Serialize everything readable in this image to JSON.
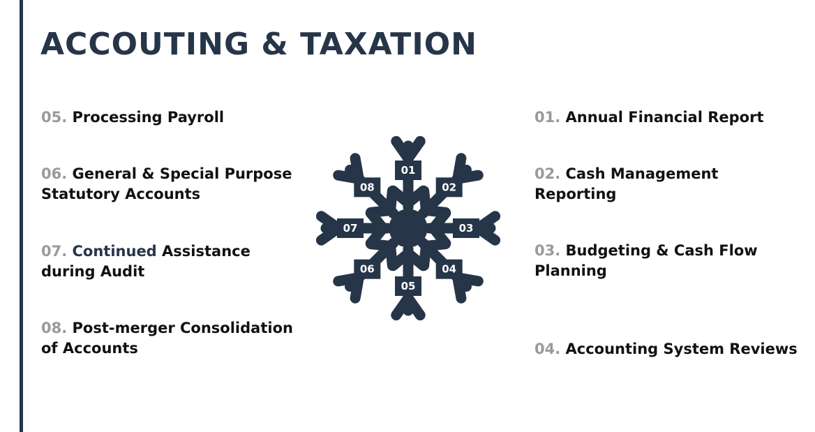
{
  "title": "ACCOUTING & TAXATION",
  "left_items": [
    {
      "num": "05.",
      "text": "Processing Payroll"
    },
    {
      "num": "06.",
      "text": "General & Special Purpose Statutory Accounts"
    },
    {
      "num": "07.",
      "highlight": "Continued",
      "text": "Assistance during Audit"
    },
    {
      "num": "08.",
      "text": "Post-merger Consolidation of Accounts"
    }
  ],
  "right_items": [
    {
      "num": "01.",
      "text": "Annual Financial Report"
    },
    {
      "num": "02.",
      "text": "Cash Management Reporting"
    },
    {
      "num": "03.",
      "text": "Budgeting & Cash Flow Planning"
    },
    {
      "num": "04.",
      "text": "Accounting System Reviews"
    }
  ],
  "snowflake_labels": [
    "01",
    "02",
    "03",
    "04",
    "05",
    "06",
    "07",
    "08"
  ],
  "colors": {
    "navy": "#263548",
    "number_gray": "#9a9a9a",
    "text": "#111111"
  }
}
